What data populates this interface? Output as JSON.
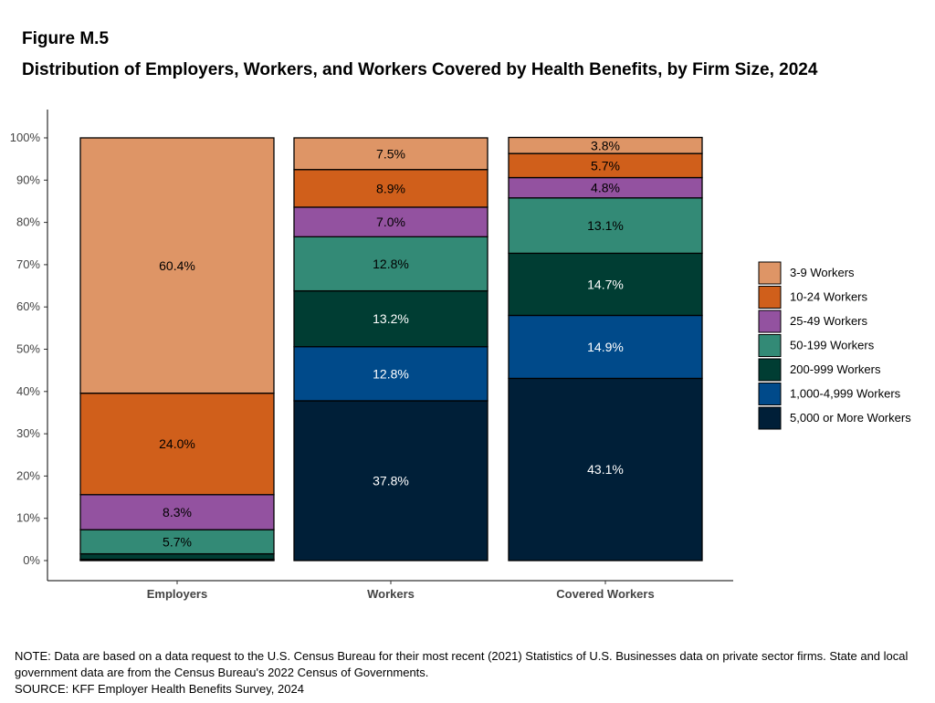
{
  "title": "Figure M.5",
  "subtitle": "Distribution of Employers, Workers, and Workers Covered by Health Benefits, by Firm Size, 2024",
  "note": "NOTE: Data are based on a data request to the U.S. Census Bureau for their most recent (2021) Statistics of U.S. Businesses data on private sector firms. State and local government data are from the Census Bureau's 2022 Census of Governments.",
  "source": "SOURCE: KFF Employer Health Benefits Survey, 2024",
  "chart_data": {
    "type": "bar",
    "stacked": true,
    "categories": [
      "Employers",
      "Workers",
      "Covered Workers"
    ],
    "ylim": [
      0,
      100
    ],
    "yticks": [
      "0%",
      "10%",
      "20%",
      "30%",
      "40%",
      "50%",
      "60%",
      "70%",
      "80%",
      "90%",
      "100%"
    ],
    "legend_position": "right",
    "series": [
      {
        "name": "5,000 or More Workers",
        "color": "#001f38",
        "values": [
          0.1,
          37.8,
          43.1
        ],
        "labels": [
          "",
          "37.8%",
          "43.1%"
        ],
        "label_color": "#ffffff"
      },
      {
        "name": "1,000-4,999 Workers",
        "color": "#004a8a",
        "values": [
          0.2,
          12.8,
          14.9
        ],
        "labels": [
          "",
          "12.8%",
          "14.9%"
        ],
        "label_color": "#ffffff"
      },
      {
        "name": "200-999 Workers",
        "color": "#003d33",
        "values": [
          1.3,
          13.2,
          14.7
        ],
        "labels": [
          "",
          "13.2%",
          "14.7%"
        ],
        "label_color": "#ffffff"
      },
      {
        "name": "50-199 Workers",
        "color": "#338a76",
        "values": [
          5.7,
          12.8,
          13.1
        ],
        "labels": [
          "5.7%",
          "12.8%",
          "13.1%"
        ],
        "label_color": "#000000"
      },
      {
        "name": "25-49 Workers",
        "color": "#9352a0",
        "values": [
          8.3,
          7.0,
          4.8
        ],
        "labels": [
          "8.3%",
          "7.0%",
          "4.8%"
        ],
        "label_color": "#000000"
      },
      {
        "name": "10-24 Workers",
        "color": "#d05f1b",
        "values": [
          24.0,
          8.9,
          5.7
        ],
        "labels": [
          "24.0%",
          "8.9%",
          "5.7%"
        ],
        "label_color": "#000000"
      },
      {
        "name": "3-9 Workers",
        "color": "#de9566",
        "values": [
          60.4,
          7.5,
          3.8
        ],
        "labels": [
          "60.4%",
          "7.5%",
          "3.8%"
        ],
        "label_color": "#000000"
      }
    ]
  }
}
